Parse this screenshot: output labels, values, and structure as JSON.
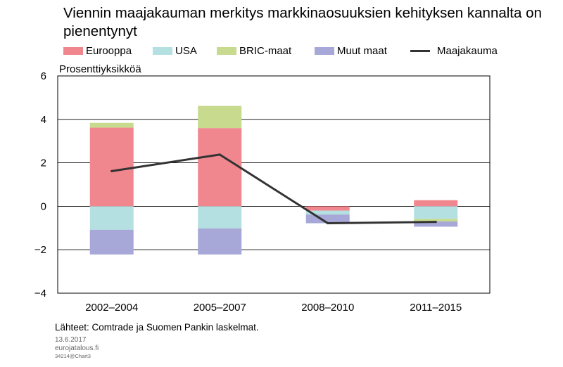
{
  "chart_data": {
    "type": "bar",
    "title": "Viennin maajakauman merkitys markkinaosuuksien kehityksen kannalta on pienentynyt",
    "ylabel": "Prosenttiyksikköä",
    "xlabel": "",
    "categories": [
      "2002–2004",
      "2005–2007",
      "2008–2010",
      "2011–2015"
    ],
    "ylim": [
      -4,
      6
    ],
    "yticks": [
      -4,
      -2,
      0,
      2,
      4,
      6
    ],
    "stacked": true,
    "grid": true,
    "series": [
      {
        "name": "Eurooppa",
        "color": "#f0878e",
        "values": [
          3.62,
          3.6,
          -0.2,
          0.28
        ]
      },
      {
        "name": "USA",
        "color": "#b4e0e2",
        "values": [
          -1.08,
          -1.02,
          -0.18,
          -0.58
        ]
      },
      {
        "name": "BRIC-maat",
        "color": "#c7da8e",
        "values": [
          0.22,
          1.02,
          0.0,
          -0.12
        ]
      },
      {
        "name": "Muut maat",
        "color": "#a7a8d8",
        "values": [
          -1.14,
          -1.2,
          -0.4,
          -0.24
        ]
      }
    ],
    "line": {
      "name": "Maajakauma",
      "color": "#333333",
      "values": [
        1.62,
        2.38,
        -0.78,
        -0.72
      ]
    }
  },
  "legend": {
    "items": [
      {
        "label": "Eurooppa",
        "color": "#f0878e",
        "kind": "bar"
      },
      {
        "label": "USA",
        "color": "#b4e0e2",
        "kind": "bar"
      },
      {
        "label": "BRIC-maat",
        "color": "#c7da8e",
        "kind": "bar"
      },
      {
        "label": "Muut maat",
        "color": "#a7a8d8",
        "kind": "bar"
      },
      {
        "label": "Maajakauma",
        "color": "#333333",
        "kind": "line"
      }
    ]
  },
  "footer": {
    "source": "Lähteet: Comtrade ja Suomen Pankin laskelmat.",
    "date": "13.6.2017",
    "site": "eurojatalous.fi",
    "code": "34214@Chart3"
  }
}
